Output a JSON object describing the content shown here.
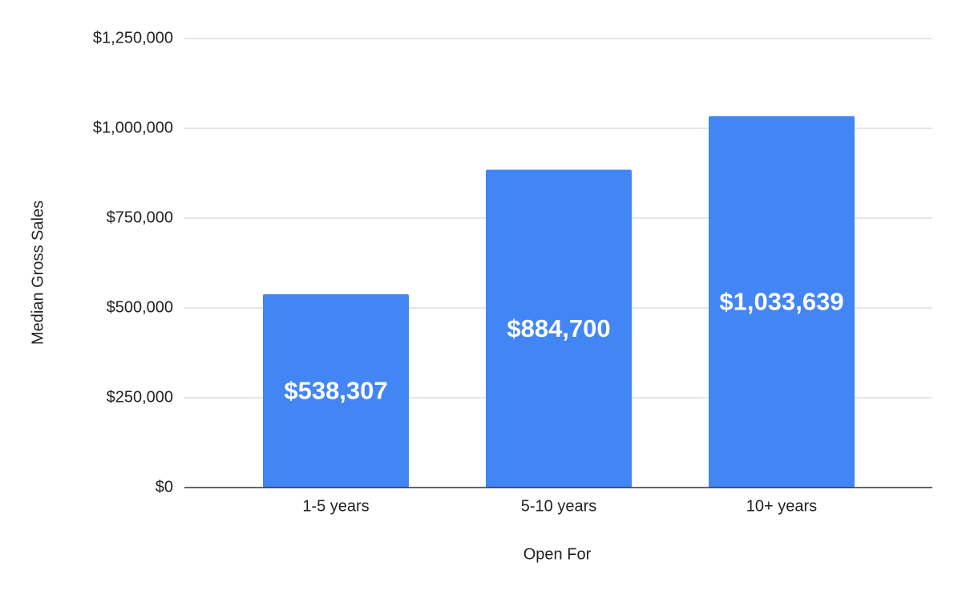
{
  "chart_data": {
    "type": "bar",
    "x_label": "Open For",
    "y_label": "Median Gross Sales",
    "categories": [
      "1-5 years",
      "5-10 years",
      "10+ years"
    ],
    "values": [
      538307,
      884700,
      1033639
    ],
    "value_labels": [
      "$538,307",
      "$884,700",
      "$1,033,639"
    ],
    "color": "#4285f4",
    "ylim": [
      0,
      1250000
    ],
    "yticks": [
      {
        "value": 0,
        "label": "$0"
      },
      {
        "value": 250000,
        "label": "$250,000"
      },
      {
        "value": 500000,
        "label": "$500,000"
      },
      {
        "value": 750000,
        "label": "$750,000"
      },
      {
        "value": 1000000,
        "label": "$1,000,000"
      },
      {
        "value": 1250000,
        "label": "$1,250,000"
      }
    ],
    "grid": true
  }
}
